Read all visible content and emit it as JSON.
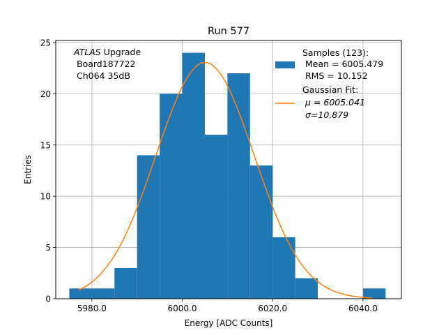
{
  "chart_data": {
    "type": "bar",
    "title": "Run 577",
    "xlabel": "Energy [ADC Counts]",
    "ylabel": "Entries",
    "xlim": [
      5972,
      6048.5
    ],
    "ylim": [
      0,
      25.2
    ],
    "x_ticks": [
      5980,
      6000,
      6020,
      6040
    ],
    "x_tick_labels": [
      "5980.0",
      "6000.0",
      "6020.0",
      "6040.0"
    ],
    "y_ticks": [
      0,
      5,
      10,
      15,
      20,
      25
    ],
    "y_tick_labels": [
      "0",
      "5",
      "10",
      "15",
      "20",
      "25"
    ],
    "grid": true,
    "bin_edges": [
      5975,
      5980,
      5985,
      5990,
      5995,
      6000,
      6005,
      6010,
      6015,
      6020,
      6025,
      6030,
      6035,
      6040,
      6045
    ],
    "counts": [
      1,
      1,
      3,
      14,
      20,
      24,
      16,
      22,
      13,
      6,
      2,
      0,
      0,
      1
    ],
    "fit": {
      "mu": 6005.041,
      "sigma": 10.879,
      "amplitude": 23.05,
      "x_range": [
        5977,
        6042
      ]
    },
    "annotation": {
      "italic_word": "ATLAS",
      "line1_rest": " Upgrade",
      "line2": "Board187722",
      "line3": "Ch064 35dB"
    },
    "legend": {
      "placement": "upper-right",
      "hist_title": "Samples (123):",
      "hist_mean": "Mean = 6005.479",
      "hist_rms": "RMS = 10.152",
      "fit_title": "Gaussian Fit:",
      "fit_mu": "μ = 6005.041",
      "fit_sigma": "σ=10.879"
    },
    "colors": {
      "hist": "#1f77b4",
      "fit": "#ff7f0e",
      "grid": "#b0b0b0"
    }
  }
}
